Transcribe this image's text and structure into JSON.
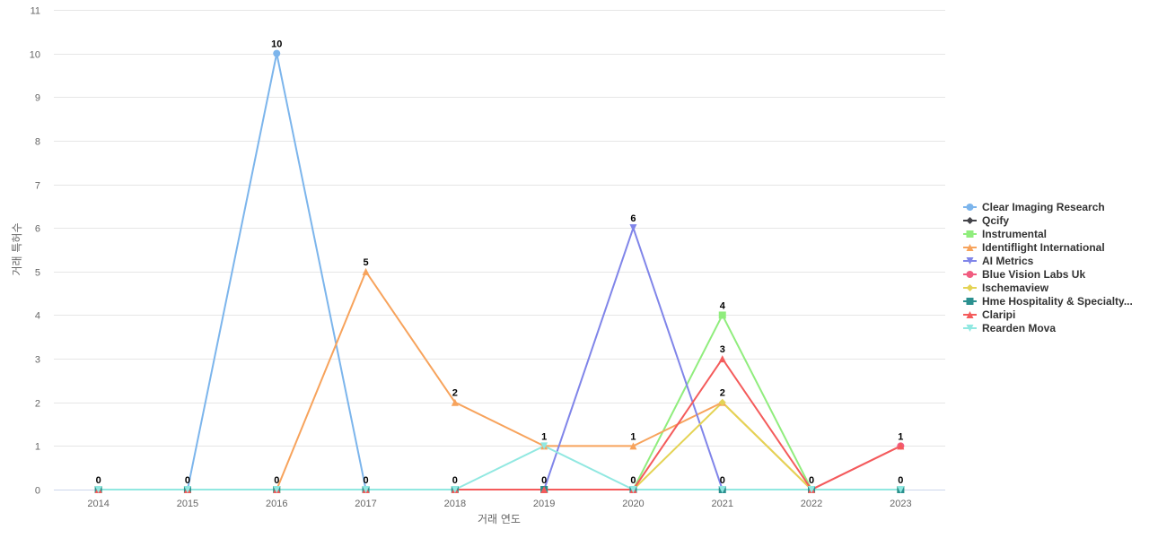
{
  "chart_data": {
    "type": "line",
    "title": "",
    "xlabel": "거래 연도",
    "ylabel": "거래 특허수",
    "ylim": [
      0,
      11
    ],
    "yticks": [
      0,
      1,
      2,
      3,
      4,
      5,
      6,
      7,
      8,
      9,
      10,
      11
    ],
    "categories": [
      "2014",
      "2015",
      "2016",
      "2017",
      "2018",
      "2019",
      "2020",
      "2021",
      "2022",
      "2023"
    ],
    "grid": "horizontal",
    "legend_position": "right",
    "series": [
      {
        "name": "Clear Imaging Research",
        "color": "#7cb5ec",
        "marker": "circle",
        "values": [
          0,
          0,
          10,
          0,
          0,
          0,
          0,
          0,
          0,
          0
        ]
      },
      {
        "name": "Qcify",
        "color": "#434348",
        "marker": "diamond",
        "values": [
          0,
          0,
          0,
          0,
          0,
          0,
          0,
          0,
          0,
          0
        ]
      },
      {
        "name": "Instrumental",
        "color": "#90ed7d",
        "marker": "square",
        "values": [
          0,
          0,
          0,
          0,
          0,
          0,
          0,
          4,
          0,
          0
        ]
      },
      {
        "name": "Identiflight International",
        "color": "#f7a35c",
        "marker": "triangle",
        "values": [
          0,
          0,
          0,
          5,
          2,
          1,
          1,
          2,
          0,
          0
        ]
      },
      {
        "name": "AI Metrics",
        "color": "#8085e9",
        "marker": "triangle-down",
        "values": [
          0,
          0,
          0,
          0,
          0,
          0,
          6,
          0,
          0,
          0
        ]
      },
      {
        "name": "Blue Vision Labs Uk",
        "color": "#f15c80",
        "marker": "circle",
        "values": [
          0,
          0,
          0,
          0,
          0,
          0,
          0,
          0,
          0,
          1
        ]
      },
      {
        "name": "Ischemaview",
        "color": "#e4d354",
        "marker": "diamond",
        "values": [
          0,
          0,
          0,
          0,
          0,
          0,
          0,
          2,
          0,
          0
        ]
      },
      {
        "name": "Hme Hospitality & Specialty...",
        "color": "#2b908f",
        "marker": "square",
        "values": [
          0,
          0,
          0,
          0,
          0,
          0,
          0,
          0,
          0,
          0
        ]
      },
      {
        "name": "Claripi",
        "color": "#f45b5b",
        "marker": "triangle",
        "values": [
          0,
          0,
          0,
          0,
          0,
          0,
          0,
          3,
          0,
          1
        ]
      },
      {
        "name": "Rearden Mova",
        "color": "#91e8e1",
        "marker": "triangle-down",
        "values": [
          0,
          0,
          0,
          0,
          0,
          1,
          0,
          0,
          0,
          0
        ]
      }
    ],
    "data_labels": [
      {
        "category": "2014",
        "series": "Rearden Mova",
        "value": 0
      },
      {
        "category": "2015",
        "series": "Rearden Mova",
        "value": 0
      },
      {
        "category": "2016",
        "series": "Clear Imaging Research",
        "value": 10
      },
      {
        "category": "2016",
        "series": "Rearden Mova",
        "value": 0
      },
      {
        "category": "2017",
        "series": "Identiflight International",
        "value": 5
      },
      {
        "category": "2017",
        "series": "Rearden Mova",
        "value": 0
      },
      {
        "category": "2018",
        "series": "Identiflight International",
        "value": 2
      },
      {
        "category": "2018",
        "series": "Rearden Mova",
        "value": 0
      },
      {
        "category": "2019",
        "series": "Rearden Mova",
        "value": 1
      },
      {
        "category": "2019",
        "series": "AI Metrics",
        "value": 0
      },
      {
        "category": "2020",
        "series": "AI Metrics",
        "value": 6
      },
      {
        "category": "2020",
        "series": "Identiflight International",
        "value": 1
      },
      {
        "category": "2020",
        "series": "Rearden Mova",
        "value": 0
      },
      {
        "category": "2021",
        "series": "Instrumental",
        "value": 4
      },
      {
        "category": "2021",
        "series": "Claripi",
        "value": 3
      },
      {
        "category": "2021",
        "series": "Identiflight International",
        "value": 2
      },
      {
        "category": "2021",
        "series": "Rearden Mova",
        "value": 0
      },
      {
        "category": "2022",
        "series": "Rearden Mova",
        "value": 0
      },
      {
        "category": "2023",
        "series": "Blue Vision Labs Uk",
        "value": 1
      },
      {
        "category": "2023",
        "series": "Rearden Mova",
        "value": 0
      }
    ]
  }
}
